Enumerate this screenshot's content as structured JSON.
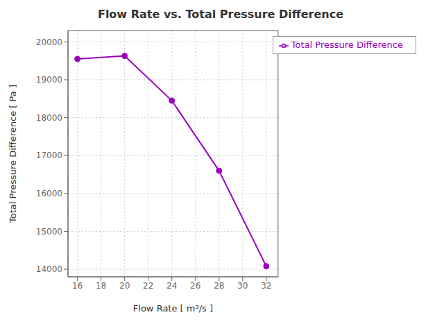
{
  "chart_data": {
    "type": "line",
    "title": "Flow Rate vs. Total Pressure Difference",
    "xlabel": "Flow Rate [ m³/s ]",
    "ylabel": "Total Pressure Difference [ Pa ]",
    "x": [
      16,
      20,
      24,
      28,
      32
    ],
    "series": [
      {
        "name": "Total Pressure Difference",
        "color": "#9900bb",
        "marker": "circle",
        "values": [
          19550,
          19630,
          18450,
          16600,
          14080
        ]
      }
    ],
    "xlim": [
      15.2,
      33.0
    ],
    "ylim": [
      13800,
      20300
    ],
    "xticks": [
      16,
      18,
      20,
      22,
      24,
      26,
      28,
      30,
      32
    ],
    "yticks": [
      14000,
      15000,
      16000,
      17000,
      18000,
      19000,
      20000
    ],
    "grid": true,
    "legend": "upper right"
  }
}
